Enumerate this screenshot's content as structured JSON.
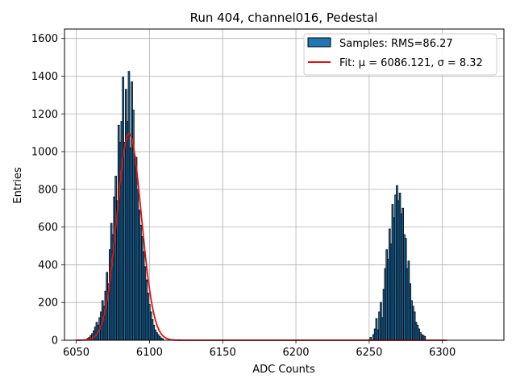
{
  "chart_data": {
    "type": "bar",
    "title": "Run 404, channel016, Pedestal",
    "xlabel": "ADC Counts",
    "ylabel": "Entries",
    "xlim": [
      6042,
      6342
    ],
    "ylim": [
      0,
      1650
    ],
    "x_ticks": [
      6050,
      6100,
      6150,
      6200,
      6250,
      6300
    ],
    "x_tick_labels": [
      "6050",
      "6100",
      "6150",
      "6200",
      "6250",
      "6300"
    ],
    "y_ticks": [
      0,
      200,
      400,
      600,
      800,
      1000,
      1200,
      1400,
      1600
    ],
    "y_tick_labels": [
      "0",
      "200",
      "400",
      "600",
      "800",
      "1000",
      "1200",
      "1400",
      "1600"
    ],
    "grid": true,
    "legend_position": "top-right",
    "histogram": {
      "name": "Samples: RMS=86.27",
      "color": "#1f77b4",
      "edge_color": "#000000",
      "bins": [
        {
          "x": 6058,
          "y": 10
        },
        {
          "x": 6059,
          "y": 15
        },
        {
          "x": 6060,
          "y": 25
        },
        {
          "x": 6061,
          "y": 35
        },
        {
          "x": 6062,
          "y": 50
        },
        {
          "x": 6063,
          "y": 70
        },
        {
          "x": 6064,
          "y": 95
        },
        {
          "x": 6065,
          "y": 80
        },
        {
          "x": 6066,
          "y": 120
        },
        {
          "x": 6067,
          "y": 150
        },
        {
          "x": 6068,
          "y": 210
        },
        {
          "x": 6069,
          "y": 180
        },
        {
          "x": 6070,
          "y": 260
        },
        {
          "x": 6071,
          "y": 360
        },
        {
          "x": 6072,
          "y": 300
        },
        {
          "x": 6073,
          "y": 480
        },
        {
          "x": 6074,
          "y": 620
        },
        {
          "x": 6075,
          "y": 560
        },
        {
          "x": 6076,
          "y": 760
        },
        {
          "x": 6077,
          "y": 870
        },
        {
          "x": 6078,
          "y": 740
        },
        {
          "x": 6079,
          "y": 1140
        },
        {
          "x": 6080,
          "y": 1050
        },
        {
          "x": 6081,
          "y": 1160
        },
        {
          "x": 6082,
          "y": 1395
        },
        {
          "x": 6083,
          "y": 1050
        },
        {
          "x": 6084,
          "y": 1330
        },
        {
          "x": 6085,
          "y": 1160
        },
        {
          "x": 6086,
          "y": 1425
        },
        {
          "x": 6087,
          "y": 1020
        },
        {
          "x": 6088,
          "y": 1370
        },
        {
          "x": 6089,
          "y": 1220
        },
        {
          "x": 6090,
          "y": 960
        },
        {
          "x": 6091,
          "y": 970
        },
        {
          "x": 6092,
          "y": 800
        },
        {
          "x": 6093,
          "y": 690
        },
        {
          "x": 6094,
          "y": 610
        },
        {
          "x": 6095,
          "y": 550
        },
        {
          "x": 6096,
          "y": 470
        },
        {
          "x": 6097,
          "y": 390
        },
        {
          "x": 6098,
          "y": 320
        },
        {
          "x": 6099,
          "y": 250
        },
        {
          "x": 6100,
          "y": 190
        },
        {
          "x": 6101,
          "y": 150
        },
        {
          "x": 6102,
          "y": 110
        },
        {
          "x": 6103,
          "y": 80
        },
        {
          "x": 6104,
          "y": 55
        },
        {
          "x": 6105,
          "y": 40
        },
        {
          "x": 6106,
          "y": 30
        },
        {
          "x": 6107,
          "y": 20
        },
        {
          "x": 6108,
          "y": 12
        },
        {
          "x": 6109,
          "y": 8
        },
        {
          "x": 6251,
          "y": 15
        },
        {
          "x": 6253,
          "y": 30
        },
        {
          "x": 6254,
          "y": 60
        },
        {
          "x": 6255,
          "y": 115
        },
        {
          "x": 6256,
          "y": 55
        },
        {
          "x": 6257,
          "y": 150
        },
        {
          "x": 6258,
          "y": 200
        },
        {
          "x": 6259,
          "y": 120
        },
        {
          "x": 6260,
          "y": 270
        },
        {
          "x": 6261,
          "y": 380
        },
        {
          "x": 6262,
          "y": 480
        },
        {
          "x": 6263,
          "y": 430
        },
        {
          "x": 6264,
          "y": 590
        },
        {
          "x": 6265,
          "y": 510
        },
        {
          "x": 6266,
          "y": 720
        },
        {
          "x": 6267,
          "y": 650
        },
        {
          "x": 6268,
          "y": 770
        },
        {
          "x": 6269,
          "y": 820
        },
        {
          "x": 6270,
          "y": 740
        },
        {
          "x": 6271,
          "y": 780
        },
        {
          "x": 6272,
          "y": 670
        },
        {
          "x": 6273,
          "y": 700
        },
        {
          "x": 6274,
          "y": 560
        },
        {
          "x": 6275,
          "y": 540
        },
        {
          "x": 6276,
          "y": 380
        },
        {
          "x": 6277,
          "y": 420
        },
        {
          "x": 6278,
          "y": 300
        },
        {
          "x": 6279,
          "y": 210
        },
        {
          "x": 6280,
          "y": 180
        },
        {
          "x": 6281,
          "y": 150
        },
        {
          "x": 6282,
          "y": 95
        },
        {
          "x": 6283,
          "y": 80
        },
        {
          "x": 6284,
          "y": 60
        },
        {
          "x": 6285,
          "y": 40
        },
        {
          "x": 6286,
          "y": 30
        },
        {
          "x": 6287,
          "y": 25
        },
        {
          "x": 6288,
          "y": 20
        }
      ]
    },
    "fit": {
      "name": "Fit: μ = 6086.121, σ = 8.32",
      "color": "#e3120b",
      "mu": 6086.121,
      "sigma": 8.32,
      "amplitude": 1095,
      "x_range": [
        6050,
        6303
      ]
    }
  },
  "colors": {
    "grid": "#b0b0b0",
    "axis": "#000000",
    "background": "#ffffff"
  }
}
